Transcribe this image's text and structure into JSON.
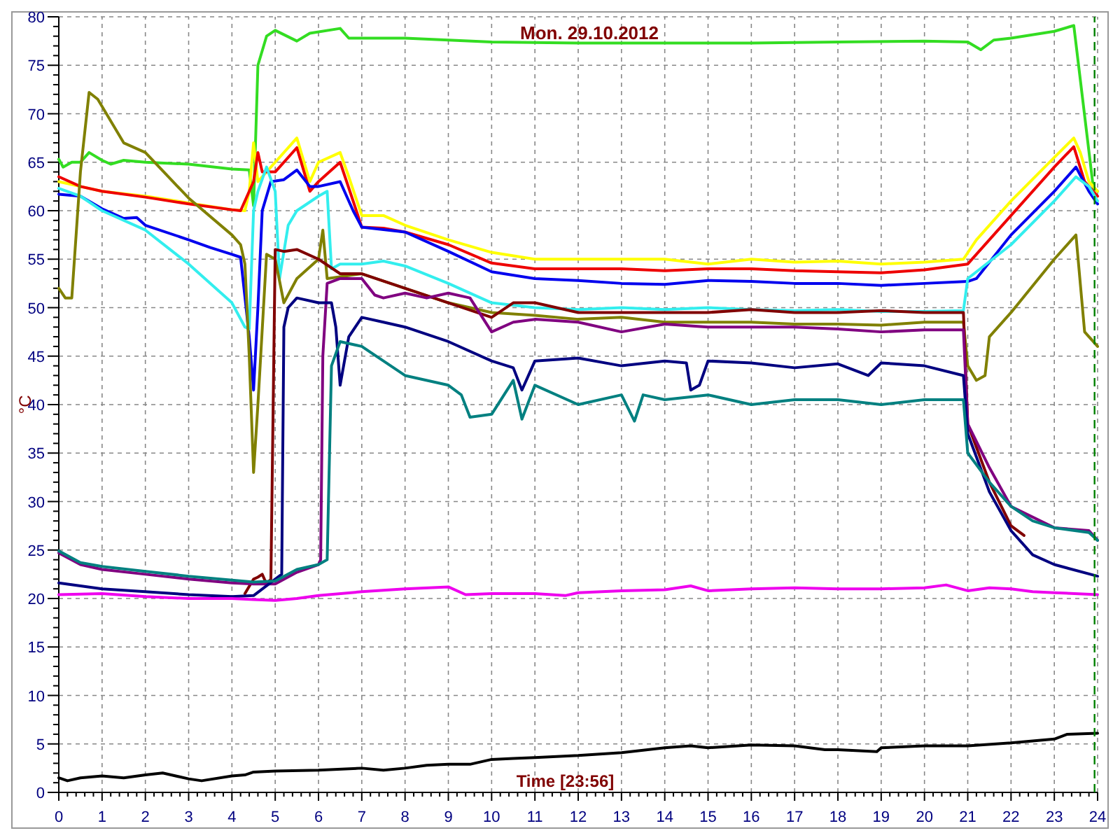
{
  "chart_data": {
    "type": "line",
    "title": "Mon. 29.10.2012",
    "xlabel": "Time [23:56]",
    "ylabel": "°C",
    "xlim": [
      0,
      24
    ],
    "ylim": [
      0,
      80
    ],
    "xticks": [
      0,
      1,
      2,
      3,
      4,
      5,
      6,
      7,
      8,
      9,
      10,
      11,
      12,
      13,
      14,
      15,
      16,
      17,
      18,
      19,
      20,
      21,
      22,
      23,
      24
    ],
    "yticks": [
      0,
      5,
      10,
      15,
      20,
      25,
      30,
      35,
      40,
      45,
      50,
      55,
      60,
      65,
      70,
      75,
      80
    ],
    "grid": true,
    "line_style": "solid",
    "ref_lines": [
      {
        "axis": "x",
        "value": 23.93,
        "color": "#008000",
        "line_style": "dashed"
      }
    ],
    "series": [
      {
        "color": "#33dd22",
        "x": [
          0,
          0.1,
          0.3,
          0.5,
          0.7,
          1,
          1.2,
          1.5,
          2,
          3,
          4,
          4.4,
          4.5,
          4.6,
          4.8,
          5,
          5.5,
          5.8,
          6.5,
          6.7,
          7,
          8,
          9,
          10,
          12,
          14,
          16,
          18,
          20,
          21,
          21.3,
          21.6,
          22,
          23,
          23.45,
          23.9,
          24
        ],
        "values": [
          65.3,
          64.5,
          65,
          65,
          66,
          65.2,
          64.8,
          65.2,
          65,
          64.8,
          64.3,
          64.2,
          60.5,
          75,
          78,
          78.6,
          77.5,
          78.3,
          78.8,
          77.8,
          77.8,
          77.8,
          77.6,
          77.4,
          77.3,
          77.3,
          77.3,
          77.4,
          77.5,
          77.4,
          76.6,
          77.6,
          77.8,
          78.5,
          79.1,
          62.4,
          62
        ]
      },
      {
        "color": "#ffff00",
        "x": [
          0,
          0.5,
          1,
          2,
          3,
          4,
          4.3,
          4.4,
          4.5,
          4.6,
          5,
          5.5,
          5.8,
          6,
          6.5,
          6.7,
          7,
          7.5,
          8,
          9,
          10,
          11,
          12,
          13,
          14,
          15,
          16,
          17,
          18,
          19,
          20,
          20.9,
          21.2,
          22,
          23,
          23.45,
          23.6,
          23.8,
          24
        ],
        "values": [
          63,
          62.5,
          62,
          61.5,
          60.8,
          60.1,
          60,
          62,
          67,
          63,
          65,
          67.5,
          63,
          65,
          66,
          63.5,
          59.5,
          59.5,
          58.5,
          57,
          55.7,
          55,
          55,
          55,
          55,
          54.5,
          55,
          54.7,
          54.8,
          54.5,
          54.7,
          55,
          57,
          61,
          65.5,
          67.5,
          66,
          63,
          62
        ]
      },
      {
        "color": "#ee0000",
        "x": [
          0,
          0.5,
          1,
          2,
          3,
          4,
          4.2,
          4.4,
          4.5,
          4.6,
          4.7,
          5,
          5.5,
          5.8,
          6,
          6.5,
          6.8,
          7,
          7.5,
          8,
          9,
          10,
          11,
          12,
          13,
          14,
          15,
          16,
          17,
          18,
          19,
          20,
          21,
          22,
          23,
          23.45,
          23.7,
          24
        ],
        "values": [
          63.5,
          62.5,
          62,
          61.4,
          60.7,
          60.1,
          60,
          62,
          63,
          66,
          64,
          64,
          66.5,
          62,
          63,
          65,
          61,
          58.3,
          58.2,
          57.8,
          56.5,
          54.6,
          54,
          54,
          54,
          53.8,
          54,
          54,
          53.8,
          53.7,
          53.6,
          53.9,
          54.5,
          59.5,
          64.5,
          66.6,
          63,
          61.5
        ]
      },
      {
        "color": "#0000ee",
        "x": [
          0,
          0.5,
          1,
          1.5,
          1.8,
          2,
          3,
          3.5,
          4,
          4.2,
          4.4,
          4.5,
          4.6,
          4.7,
          4.9,
          5.2,
          5.5,
          5.8,
          6,
          6.5,
          6.8,
          7,
          8,
          9,
          10,
          11,
          12,
          13,
          14,
          15,
          16,
          17,
          18,
          19,
          20,
          21,
          21.2,
          22,
          23,
          23.5,
          23.8,
          24
        ],
        "values": [
          61.7,
          61.5,
          60.2,
          59.2,
          59.3,
          58.5,
          57,
          56.2,
          55.5,
          55.2,
          47,
          41.5,
          50,
          60,
          63,
          63.2,
          64.2,
          62.5,
          62.5,
          63,
          60,
          58.3,
          57.8,
          55.8,
          53.7,
          53,
          52.8,
          52.5,
          52.4,
          52.8,
          52.7,
          52.5,
          52.5,
          52.3,
          52.5,
          52.7,
          53,
          57.5,
          62,
          64.5,
          62,
          60.7
        ]
      },
      {
        "color": "#33eeee",
        "x": [
          0,
          0.5,
          1,
          2,
          3,
          4,
          4.3,
          4.4,
          4.5,
          4.6,
          4.8,
          5,
          5.1,
          5.3,
          5.5,
          6,
          6.2,
          6.3,
          6.5,
          7,
          7.5,
          8,
          9,
          10,
          11,
          12,
          13,
          14,
          15,
          16,
          17,
          18,
          19,
          20,
          20.9,
          21,
          22,
          23,
          23.5,
          23.8,
          24
        ],
        "values": [
          62.3,
          61.5,
          60,
          58,
          54.5,
          50.5,
          48,
          47.8,
          60,
          62,
          64.5,
          62,
          53,
          58.5,
          60,
          61.5,
          62,
          54,
          54.5,
          54.5,
          54.8,
          54.3,
          52.5,
          50.5,
          50,
          49.8,
          50,
          49.8,
          50,
          49.8,
          49.7,
          49.8,
          49.6,
          49.6,
          49.7,
          53,
          56.5,
          61,
          63.5,
          62.5,
          61
        ]
      },
      {
        "color": "#808000",
        "x": [
          0,
          0.15,
          0.3,
          0.5,
          0.7,
          0.9,
          1.5,
          2,
          3,
          4,
          4.2,
          4.3,
          4.4,
          4.5,
          4.6,
          4.8,
          5,
          5.2,
          5.5,
          6,
          6.1,
          6.2,
          7,
          8,
          9,
          10,
          11,
          12,
          13,
          14,
          15,
          16,
          17,
          18,
          19,
          20,
          20.9,
          21,
          21.2,
          21.4,
          21.5,
          22,
          23,
          23.5,
          23.7,
          24
        ],
        "values": [
          52,
          51,
          51,
          64,
          72.2,
          71.5,
          67,
          66,
          61.3,
          57.5,
          56.5,
          54.5,
          45,
          33,
          40,
          55.5,
          55,
          50.5,
          53,
          55,
          58,
          53,
          53.5,
          52,
          50.5,
          49.5,
          49.2,
          48.8,
          49,
          48.5,
          48.5,
          48.5,
          48.3,
          48.3,
          48.2,
          48.5,
          48.5,
          44,
          42.5,
          43,
          47,
          49.5,
          55,
          57.5,
          47.5,
          46
        ]
      },
      {
        "color": "#800000",
        "x": [
          4.3,
          4.5,
          4.6,
          4.7,
          4.8,
          4.9,
          5,
          5.2,
          5.5,
          6,
          6.5,
          7,
          8,
          9,
          10,
          10.5,
          11,
          12,
          13,
          14,
          15,
          16,
          17,
          18,
          19,
          20,
          20.9,
          21,
          21.5,
          22,
          22.3
        ],
        "values": [
          20.5,
          22,
          22.2,
          22.5,
          21.5,
          22,
          56,
          55.8,
          56,
          55,
          53.5,
          53.5,
          52,
          50.5,
          49,
          50.5,
          50.5,
          49.5,
          49.5,
          49.5,
          49.5,
          49.8,
          49.5,
          49.5,
          49.7,
          49.5,
          49.5,
          38,
          32,
          27.5,
          26.5
        ]
      },
      {
        "color": "#800080",
        "x": [
          0,
          0.5,
          1,
          2,
          3,
          4,
          4.5,
          5,
          5.5,
          6,
          6.05,
          6.1,
          6.2,
          6.5,
          7,
          7.3,
          7.5,
          8,
          8.5,
          9,
          9.5,
          10,
          10.5,
          11,
          12,
          13,
          14,
          15,
          16,
          17,
          18,
          19,
          20,
          20.9,
          21,
          21.5,
          22,
          23,
          23.8,
          24
        ],
        "values": [
          24.7,
          23.5,
          23,
          22.5,
          22,
          21.6,
          21.5,
          21.5,
          22.7,
          23.5,
          24,
          45,
          52.5,
          53,
          53,
          51.3,
          51,
          51.5,
          51,
          51.5,
          51,
          47.5,
          48.5,
          48.8,
          48.5,
          47.5,
          48.3,
          48,
          48,
          48,
          47.8,
          47.5,
          47.7,
          47.7,
          38,
          33.5,
          29.5,
          27.3,
          27,
          26
        ]
      },
      {
        "color": "#000080",
        "x": [
          0,
          1,
          2,
          3,
          4,
          4.5,
          5,
          5.15,
          5.2,
          5.3,
          5.5,
          6,
          6.3,
          6.4,
          6.5,
          6.7,
          7,
          7.5,
          8,
          9,
          10,
          10.5,
          10.7,
          11,
          12,
          13,
          14,
          14.5,
          14.6,
          14.8,
          15,
          16,
          17,
          18,
          18.7,
          19,
          20,
          20.9,
          21,
          21.5,
          22,
          22.5,
          23,
          24
        ],
        "values": [
          21.6,
          21,
          20.7,
          20.4,
          20.2,
          20.3,
          22,
          22.5,
          48,
          50,
          51,
          50.5,
          50.5,
          48,
          42,
          47,
          49,
          48.5,
          48,
          46.5,
          44.5,
          43.8,
          41.5,
          44.5,
          44.8,
          44,
          44.5,
          44.3,
          41.5,
          42,
          44.5,
          44.3,
          43.8,
          44.2,
          43,
          44.3,
          44,
          43,
          37,
          31,
          27,
          24.5,
          23.5,
          22.3
        ]
      },
      {
        "color": "#008080",
        "x": [
          0,
          0.5,
          1,
          2,
          3,
          4,
          4.5,
          5,
          5.5,
          6,
          6.2,
          6.3,
          6.5,
          7,
          7.5,
          8,
          9,
          9.3,
          9.5,
          10,
          10.5,
          10.7,
          11,
          12,
          13,
          13.3,
          13.5,
          14,
          15,
          16,
          17,
          18,
          19,
          20,
          20.9,
          21,
          21.5,
          22,
          22.5,
          23,
          23.8,
          24
        ],
        "values": [
          24.9,
          23.7,
          23.3,
          22.8,
          22.3,
          21.9,
          21.7,
          21.8,
          23,
          23.5,
          24,
          44,
          46.5,
          46,
          44.5,
          43,
          42,
          41,
          38.7,
          39,
          42.5,
          38.5,
          42,
          40,
          41,
          38.3,
          41,
          40.5,
          41,
          40,
          40.5,
          40.5,
          40,
          40.5,
          40.5,
          35,
          32,
          29.5,
          28,
          27.3,
          26.8,
          26
        ]
      },
      {
        "color": "#ee00ee",
        "x": [
          0,
          1,
          2,
          3,
          4,
          4.5,
          5,
          5.5,
          6,
          7,
          8,
          9,
          9.4,
          10,
          11,
          11.7,
          12,
          13,
          14,
          14.6,
          15,
          16,
          17,
          18,
          19,
          20,
          20.5,
          21,
          21.5,
          22,
          22.5,
          23,
          24
        ],
        "values": [
          20.4,
          20.5,
          20.2,
          20,
          20,
          19.9,
          19.8,
          20,
          20.3,
          20.7,
          21,
          21.2,
          20.4,
          20.5,
          20.5,
          20.3,
          20.6,
          20.8,
          20.9,
          21.3,
          20.8,
          21,
          21.1,
          21,
          21,
          21.1,
          21.4,
          20.8,
          21.1,
          21,
          20.7,
          20.6,
          20.4
        ]
      },
      {
        "color": "#000000",
        "x": [
          0,
          0.2,
          0.5,
          1,
          1.5,
          2,
          2.4,
          3,
          3.3,
          4,
          4.3,
          4.5,
          5,
          6,
          7,
          7.5,
          8,
          8.5,
          9,
          9.5,
          10,
          10.5,
          11,
          12,
          13,
          14,
          14.6,
          15,
          16,
          17,
          17.7,
          18,
          18.9,
          19,
          20,
          21,
          22,
          23,
          23.3,
          24
        ],
        "values": [
          1.5,
          1.2,
          1.5,
          1.7,
          1.5,
          1.8,
          2,
          1.4,
          1.2,
          1.7,
          1.8,
          2.1,
          2.2,
          2.3,
          2.5,
          2.3,
          2.5,
          2.8,
          2.9,
          2.9,
          3.4,
          3.5,
          3.6,
          3.8,
          4.1,
          4.6,
          4.8,
          4.6,
          4.9,
          4.8,
          4.4,
          4.4,
          4.2,
          4.6,
          4.8,
          4.8,
          5.1,
          5.5,
          6,
          6.1
        ]
      }
    ]
  }
}
